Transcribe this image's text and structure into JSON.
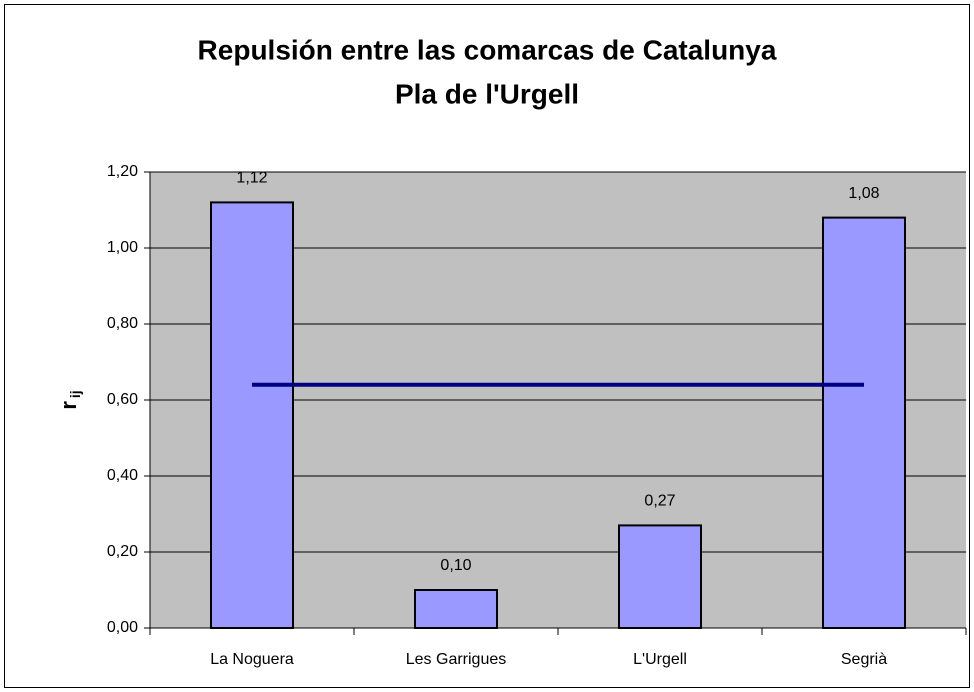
{
  "chart_data": {
    "type": "bar",
    "title": "Repulsión entre las comarcas de Catalunya",
    "subtitle": "Pla de l'Urgell",
    "ylabel": "r",
    "ylabel_sub": "ij",
    "categories": [
      "La Noguera",
      "Les Garrigues",
      "L'Urgell",
      "Segrià"
    ],
    "values": [
      1.12,
      0.1,
      0.27,
      1.08
    ],
    "value_labels": [
      "1,12",
      "0,10",
      "0,27",
      "1,08"
    ],
    "color": "#9999ff",
    "line": {
      "values": [
        0.64,
        0.64,
        0.64,
        0.64
      ],
      "color": "#000080"
    },
    "ylim": [
      0,
      1.2
    ],
    "yticks": [
      {
        "value": 0,
        "label": "0,00"
      },
      {
        "value": 0.2,
        "label": "0,20"
      },
      {
        "value": 0.4,
        "label": "0,40"
      },
      {
        "value": 0.6,
        "label": "0,60"
      },
      {
        "value": 0.8,
        "label": "0,80"
      },
      {
        "value": 1.0,
        "label": "1,00"
      },
      {
        "value": 1.2,
        "label": "1,20"
      }
    ],
    "grid": true
  }
}
